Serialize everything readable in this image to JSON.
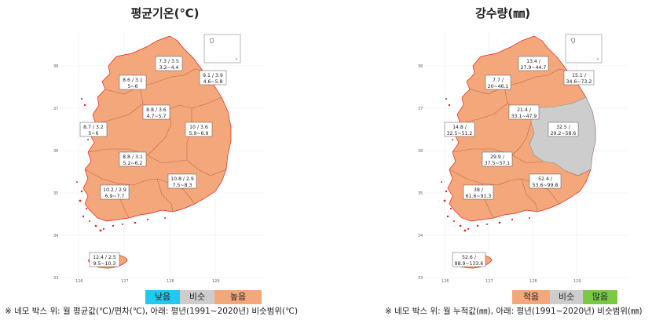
{
  "left": {
    "title": "평균기온(℃)",
    "legend": [
      {
        "label": "낮음",
        "color": "#21c9f0"
      },
      {
        "label": "비슷",
        "color": "#cdcdcd"
      },
      {
        "label": "높음",
        "color": "#f5a77c"
      }
    ],
    "note": "※ 네모 박스 위: 월 평균값(℃)/편차(℃), 아래: 평년(1991~2020년) 비슷범위(℃)",
    "regions": [
      {
        "top": "7.3 / 3.5",
        "bottom": "3.2~4.4"
      },
      {
        "top": "8.6 / 3.1",
        "bottom": "5~6"
      },
      {
        "top": "9.1 / 3.9",
        "bottom": "4.6~5.8"
      },
      {
        "top": "8.8 / 3.6",
        "bottom": "4.7~5.7"
      },
      {
        "top": "8.7 / 3.2",
        "bottom": "5~6"
      },
      {
        "top": "10 / 3.6",
        "bottom": "5.9~6.9"
      },
      {
        "top": "8.8 / 3.1",
        "bottom": "5.2~6.2"
      },
      {
        "top": "10.8 / 2.9",
        "bottom": "7.5~8.3"
      },
      {
        "top": "10.2 / 2.9",
        "bottom": "6.9~7.7"
      },
      {
        "top": "12.4 / 2.5",
        "bottom": "9.5~10.3"
      }
    ]
  },
  "right": {
    "title": "강수량(㎜)",
    "legend": [
      {
        "label": "적음",
        "color": "#f5a77c"
      },
      {
        "label": "비슷",
        "color": "#cdcdcd"
      },
      {
        "label": "많음",
        "color": "#7ac943"
      }
    ],
    "note": "※ 네모 박스 위: 월 누적값(㎜), 아래: 평년(1991~2020년) 비슷범위(㎜)",
    "regions": [
      {
        "top": "13.4 /",
        "bottom": "27.9~44.7"
      },
      {
        "top": "7.7 /",
        "bottom": "20~46.1"
      },
      {
        "top": "15.1 /",
        "bottom": "34.6~73.2"
      },
      {
        "top": "21.4 /",
        "bottom": "33.1~47.9"
      },
      {
        "top": "14.8 /",
        "bottom": "32.5~51.2"
      },
      {
        "top": "32.5 /",
        "bottom": "29.2~58.6"
      },
      {
        "top": "29.9 /",
        "bottom": "37.5~57.1"
      },
      {
        "top": "52.4 /",
        "bottom": "53.6~99.8"
      },
      {
        "top": "38 /",
        "bottom": "61.6~91.3"
      },
      {
        "top": "52.6 /",
        "bottom": "88.9~133.6"
      }
    ]
  },
  "axis": {
    "x_ticks": [
      "126",
      "127",
      "128",
      "129"
    ],
    "y_ticks": [
      "38",
      "37",
      "36",
      "35",
      "34",
      "33"
    ]
  },
  "colors": {
    "land": "#f5a77c",
    "similar": "#cdcdcd",
    "border": "#b06a44",
    "coast_dots": "#e8201a"
  }
}
